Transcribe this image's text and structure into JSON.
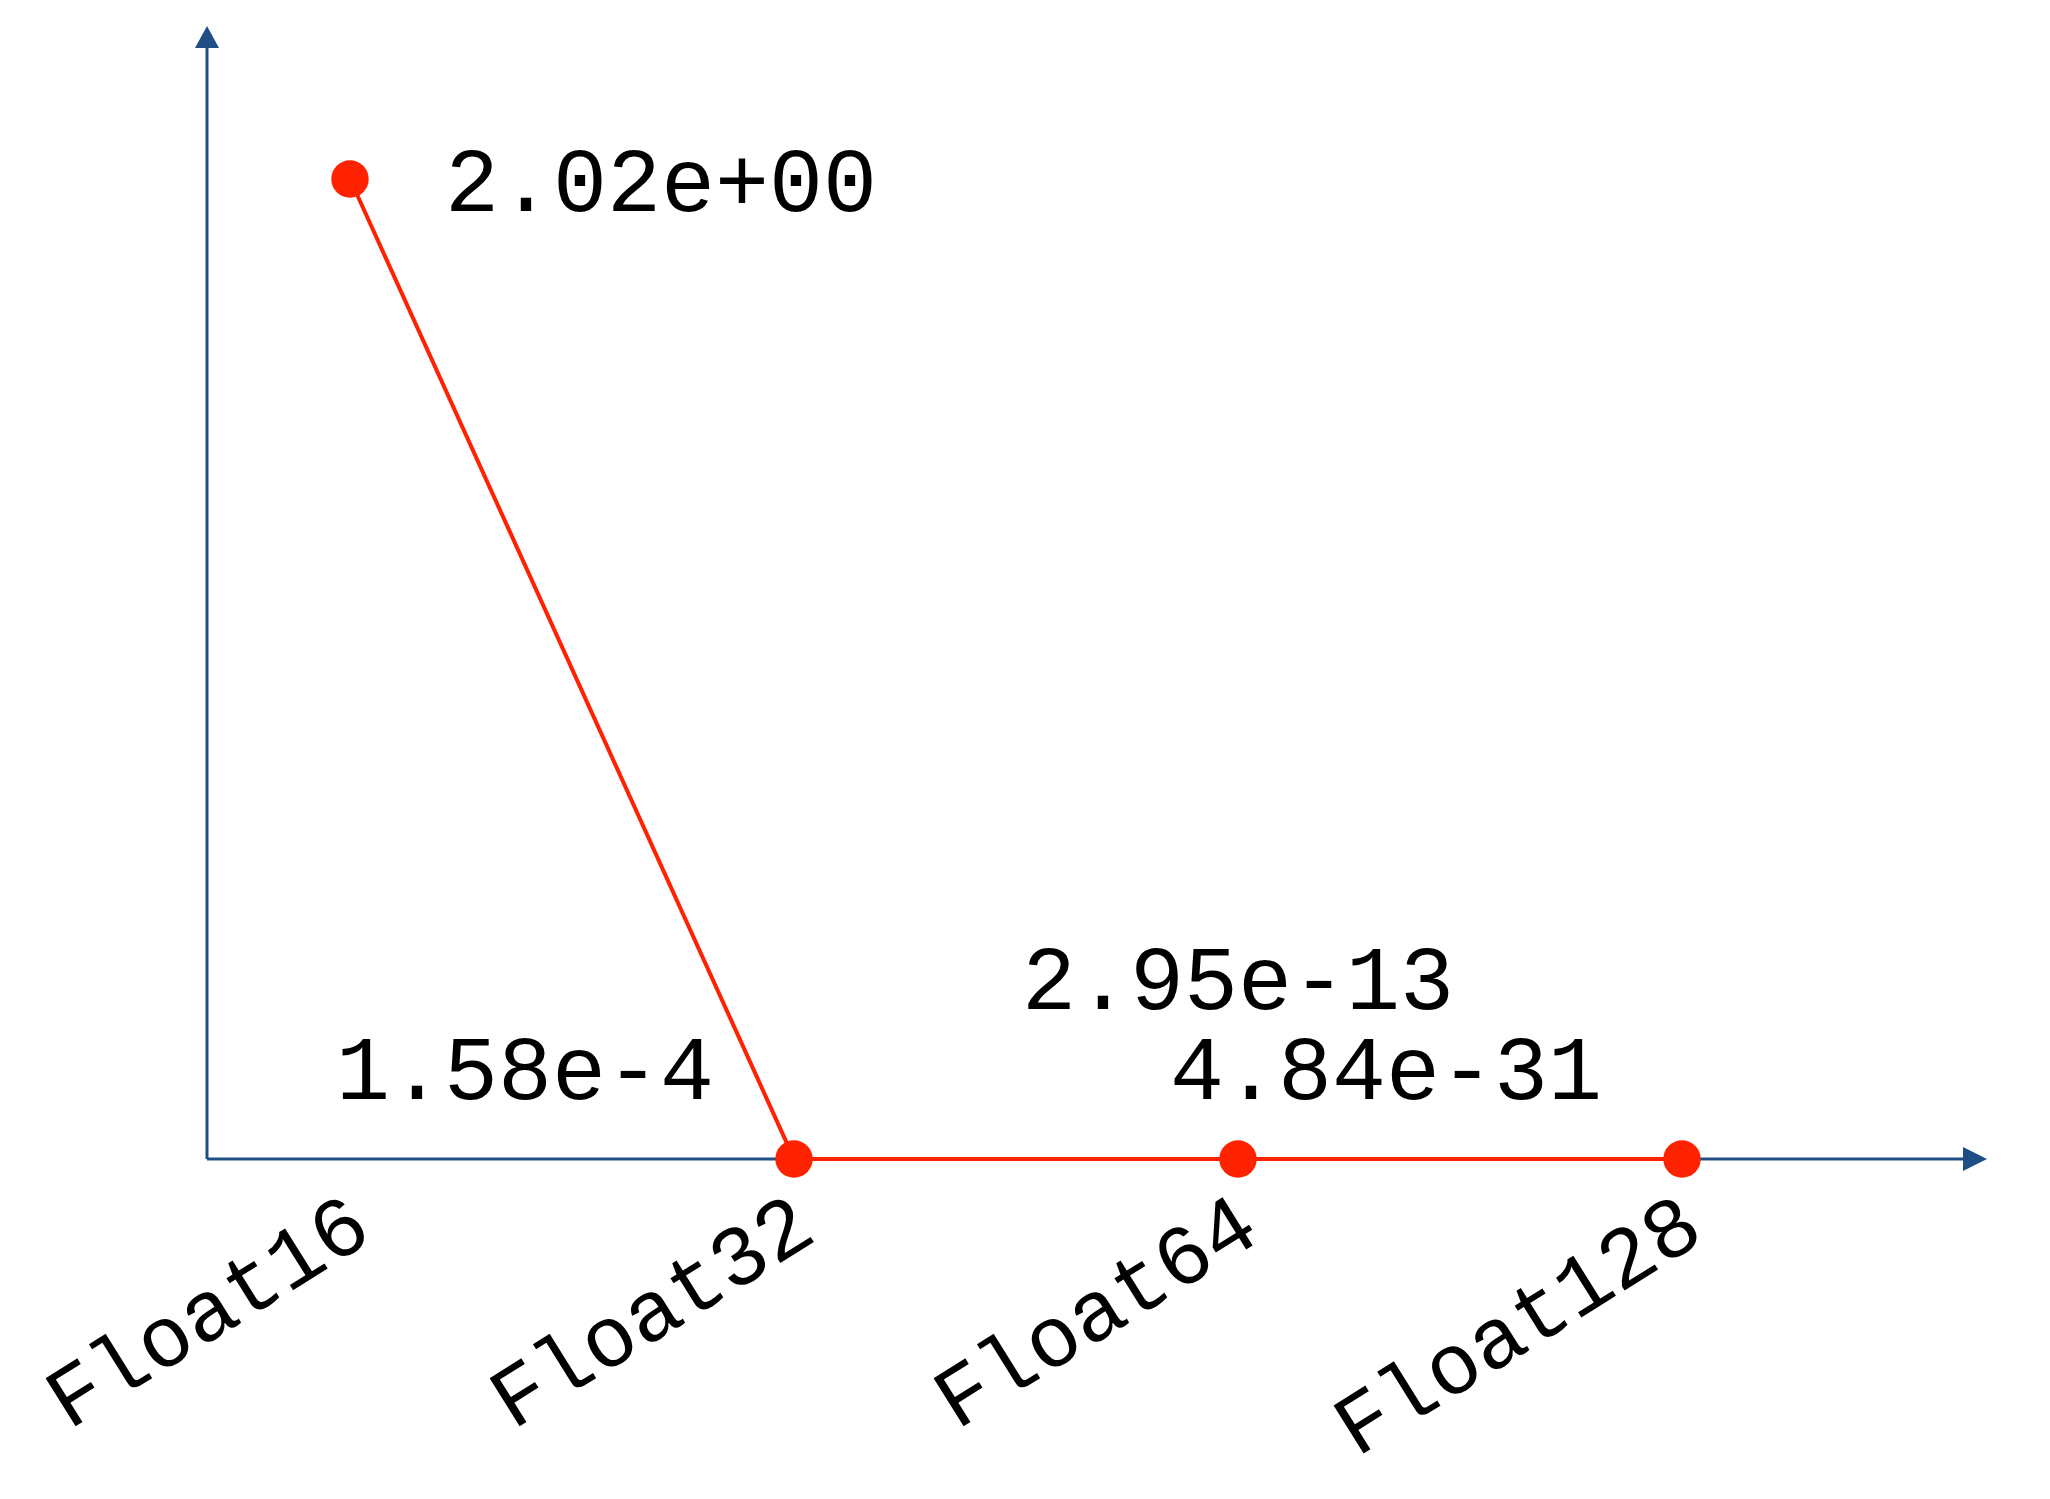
{
  "chart_data": {
    "type": "line",
    "categories": [
      "Float16",
      "Float32",
      "Float64",
      "Float128"
    ],
    "values": [
      2.02,
      0.000158,
      2.95e-13,
      4.84e-31
    ],
    "value_labels": [
      "2.02e+00",
      "1.58e-4",
      "2.95e-13",
      "4.84e-31"
    ],
    "color": "#ff2200",
    "marker": "circle",
    "tick_labels": "x"
  }
}
